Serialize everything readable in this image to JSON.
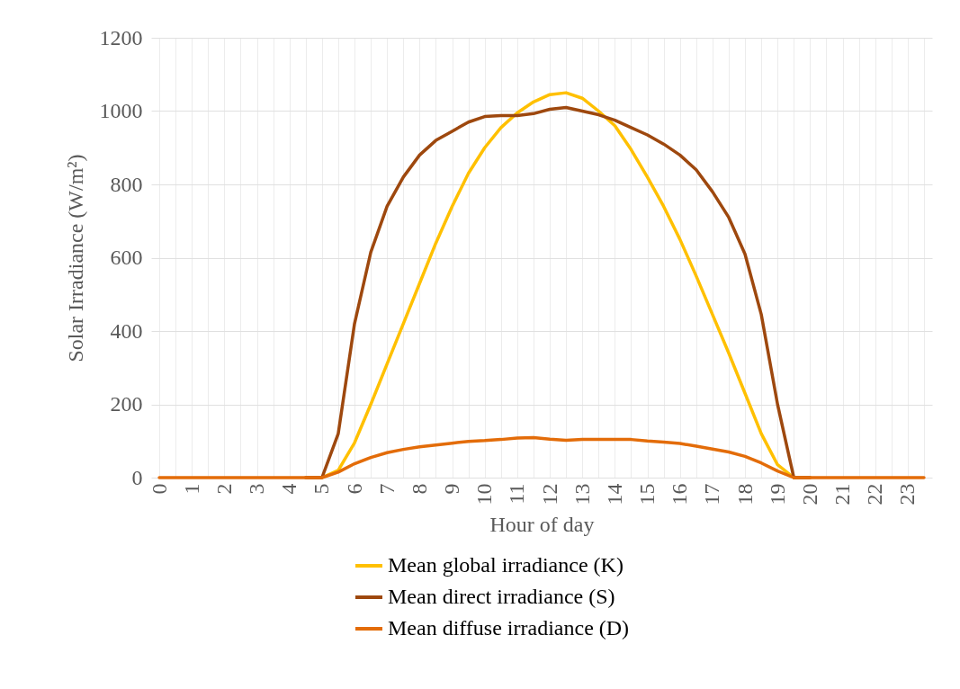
{
  "chart_data": {
    "type": "line",
    "xlabel": "Hour of day",
    "ylabel": "Solar Irradiance (W/m²)",
    "categories": [
      "0",
      null,
      "1",
      null,
      "2",
      null,
      "3",
      null,
      "4",
      null,
      "5",
      null,
      "6",
      null,
      "7",
      null,
      "8",
      null,
      "9",
      null,
      "10",
      null,
      "11",
      null,
      "12",
      null,
      "13",
      null,
      "14",
      null,
      "15",
      null,
      "16",
      null,
      "17",
      null,
      "18",
      null,
      "19",
      null,
      "20",
      null,
      "21",
      null,
      "22",
      null,
      "23",
      null
    ],
    "ylim": [
      0,
      1200
    ],
    "yticks": [
      0,
      200,
      400,
      600,
      800,
      1000,
      1200
    ],
    "grid": true,
    "legend": "bottom",
    "marker": "none",
    "line_style": "solid",
    "series": [
      {
        "name": "Mean global irradiance (K)",
        "color": "#ffc000",
        "values": [
          null,
          null,
          null,
          null,
          null,
          null,
          null,
          null,
          null,
          0,
          0,
          20,
          95,
          200,
          310,
          420,
          530,
          640,
          740,
          830,
          900,
          955,
          995,
          1025,
          1045,
          1050,
          1035,
          1000,
          960,
          895,
          820,
          740,
          650,
          550,
          445,
          340,
          230,
          120,
          35,
          0,
          0,
          null,
          null,
          null,
          null,
          null,
          null,
          null
        ]
      },
      {
        "name": "Mean direct irradiance (S)",
        "color": "#9e480e",
        "values": [
          null,
          null,
          null,
          null,
          null,
          null,
          null,
          null,
          null,
          0,
          0,
          120,
          420,
          615,
          740,
          820,
          880,
          920,
          945,
          970,
          985,
          988,
          988,
          993,
          1005,
          1010,
          1000,
          990,
          975,
          955,
          935,
          910,
          880,
          840,
          780,
          710,
          610,
          445,
          200,
          0,
          0,
          null,
          null,
          null,
          null,
          null,
          null,
          null
        ]
      },
      {
        "name": "Mean diffuse irradiance (D)",
        "color": "#e36c09",
        "values": [
          0,
          0,
          0,
          0,
          0,
          0,
          0,
          0,
          0,
          0,
          0,
          15,
          38,
          55,
          68,
          77,
          84,
          89,
          94,
          99,
          101,
          104,
          108,
          109,
          105,
          102,
          104,
          104,
          104,
          104,
          100,
          97,
          93,
          86,
          78,
          70,
          58,
          40,
          18,
          0,
          0,
          0,
          0,
          0,
          0,
          0,
          0,
          0
        ]
      }
    ]
  }
}
